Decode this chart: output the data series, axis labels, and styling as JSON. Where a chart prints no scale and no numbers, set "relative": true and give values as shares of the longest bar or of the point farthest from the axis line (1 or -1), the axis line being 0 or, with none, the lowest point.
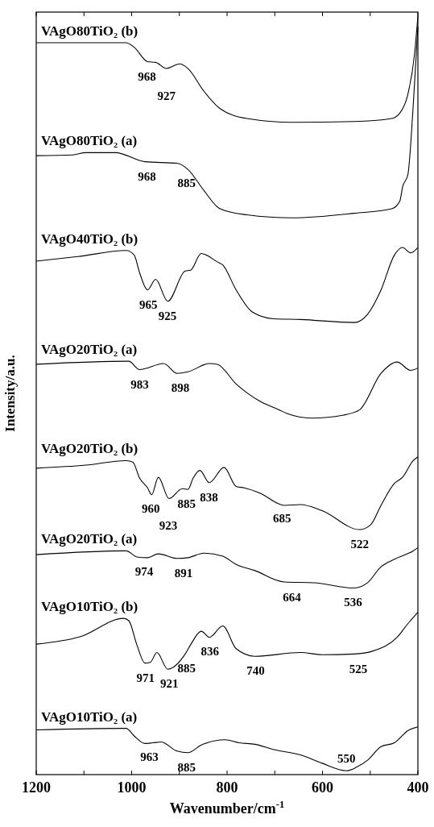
{
  "chart_data": {
    "type": "line",
    "relative": true,
    "xlabel": "Wavenumber/cm$^{-1}$",
    "ylabel": "Intensity/a.u.",
    "xlim": [
      1200,
      400
    ],
    "xticks": [
      1200,
      {
        "value": 1100,
        "label": null
      },
      1000,
      {
        "value": 900,
        "label": null
      },
      800,
      {
        "value": 700,
        "label": null
      },
      600,
      {
        "value": 500,
        "label": null
      },
      400
    ],
    "grid": false,
    "marker": "none",
    "line_style": "solid",
    "series": [
      {
        "name": "VAgO80TiO₂ (b)",
        "color": "#000000",
        "x": [
          1200,
          1011.6,
          994.7,
          966.6,
          949.7,
          927.2,
          899.1,
          882.2,
          848.5,
          814.7,
          758.5,
          662.9,
          533.5,
          454.8,
          437.9,
          421,
          407,
          400
        ],
        "values": [
          0.965,
          0.965,
          0.959,
          0.94,
          0.939,
          0.931,
          0.937,
          0.931,
          0.901,
          0.878,
          0.865,
          0.86,
          0.861,
          0.865,
          0.872,
          0.897,
          0.95,
          1.0
        ]
      },
      {
        "name": "VAgO80TiO₂ (a)",
        "color": "#000000",
        "x": [
          1200,
          1124,
          1096,
          1034,
          972,
          904.7,
          882.2,
          848.5,
          814.7,
          758.5,
          663,
          533.5,
          454.8,
          437.9,
          432,
          421,
          410,
          400
        ],
        "values": [
          0.816,
          0.817,
          0.82,
          0.82,
          0.808,
          0.806,
          0.798,
          0.77,
          0.746,
          0.738,
          0.734,
          0.74,
          0.746,
          0.756,
          0.775,
          0.791,
          0.88,
          0.986
        ]
      },
      {
        "name": "VAgO40TiO₂ (b)",
        "color": "#000000",
        "x": [
          1200,
          1112.8,
          1011.6,
          994.7,
          983.5,
          966.6,
          949.7,
          924.4,
          887.8,
          876.6,
          854.1,
          820.4,
          809.1,
          781,
          747.2,
          702.2,
          646,
          533.5,
          505.4,
          477.3,
          449.2,
          432.3,
          415.4,
          400
        ],
        "values": [
          0.677,
          0.683,
          0.691,
          0.685,
          0.662,
          0.639,
          0.653,
          0.624,
          0.664,
          0.665,
          0.687,
          0.676,
          0.672,
          0.639,
          0.61,
          0.601,
          0.6,
          0.596,
          0.607,
          0.639,
          0.685,
          0.695,
          0.688,
          0.695
        ]
      },
      {
        "name": "VAgO20TiO₂ (a)",
        "color": "#000000",
        "x": [
          1200,
          1006,
          983.5,
          932.9,
          904.7,
          882,
          837,
          820.4,
          781,
          730.4,
          691,
          674,
          623.5,
          556,
          522,
          477.3,
          443.6,
          415.4,
          400
        ],
        "values": [
          0.541,
          0.545,
          0.534,
          0.542,
          0.529,
          0.531,
          0.542,
          0.541,
          0.515,
          0.492,
          0.481,
          0.476,
          0.47,
          0.474,
          0.481,
          0.529,
          0.544,
          0.533,
          0.536
        ]
      },
      {
        "name": "VAgO20TiO₂ (b)",
        "color": "#000000",
        "x": [
          1200,
          1096,
          1011.6,
          997.5,
          983.5,
          966.6,
          958,
          944,
          921.6,
          893.5,
          882,
          871,
          857,
          837.2,
          806.3,
          781,
          764,
          730.4,
          679.8,
          646,
          601,
          522,
          499.5,
          477.3,
          449.2,
          432.3,
          409.8,
          400
        ],
        "values": [
          0.404,
          0.408,
          0.414,
          0.412,
          0.391,
          0.378,
          0.369,
          0.392,
          0.364,
          0.377,
          0.376,
          0.391,
          0.401,
          0.385,
          0.405,
          0.38,
          0.378,
          0.371,
          0.355,
          0.356,
          0.348,
          0.323,
          0.329,
          0.355,
          0.384,
          0.392,
          0.414,
          0.419
        ]
      },
      {
        "name": "VAgO20TiO₂ (a)",
        "color": "#000000",
        "x": [
          1200,
          1011.6,
          989,
          966.6,
          944,
          904.7,
          882,
          848.5,
          809,
          781,
          741.6,
          680,
          618,
          533.5,
          505.4,
          477.3,
          449.2,
          409.8,
          400
        ],
        "values": [
          0.29,
          0.295,
          0.287,
          0.286,
          0.291,
          0.285,
          0.286,
          0.292,
          0.288,
          0.277,
          0.269,
          0.254,
          0.253,
          0.246,
          0.253,
          0.274,
          0.284,
          0.295,
          0.299
        ]
      },
      {
        "name": "VAgO10TiO₂ (b)",
        "color": "#000000",
        "x": [
          1200,
          1107,
          1017,
          1006,
          989,
          972,
          961,
          947,
          924.4,
          887.8,
          876.6,
          854,
          837,
          809,
          781,
          741.6,
          646,
          601,
          533.5,
          494,
          443.6,
          421,
          400
        ],
        "values": [
          0.172,
          0.182,
          0.206,
          0.203,
          0.171,
          0.147,
          0.148,
          0.161,
          0.139,
          0.159,
          0.171,
          0.189,
          0.181,
          0.196,
          0.166,
          0.156,
          0.161,
          0.158,
          0.159,
          0.163,
          0.181,
          0.199,
          0.214
        ]
      },
      {
        "name": "VAgO10TiO₂ (a)",
        "color": "#000000",
        "x": [
          1200,
          1011.6,
          994.7,
          972,
          955,
          938.5,
          904.7,
          882,
          854,
          803.5,
          775,
          741.6,
          702,
          646,
          601,
          550,
          527.9,
          505.4,
          477.3,
          449.2,
          421,
          400
        ],
        "values": [
          0.059,
          0.061,
          0.051,
          0.041,
          0.042,
          0.043,
          0.031,
          0.029,
          0.039,
          0.046,
          0.042,
          0.04,
          0.033,
          0.026,
          0.015,
          0.005,
          0.01,
          0.019,
          0.037,
          0.042,
          0.058,
          0.063
        ]
      }
    ],
    "annotations": [
      {
        "text": "968",
        "x": 968,
        "y": 0.94
      },
      {
        "text": "927",
        "x": 927,
        "y": 0.931
      },
      {
        "text": "968",
        "x": 968,
        "y": 0.808
      },
      {
        "text": "885",
        "x": 885,
        "y": 0.799
      },
      {
        "text": "965",
        "x": 965,
        "y": 0.639
      },
      {
        "text": "925",
        "x": 925,
        "y": 0.624
      },
      {
        "text": "983",
        "x": 983,
        "y": 0.534
      },
      {
        "text": "898",
        "x": 898,
        "y": 0.53
      },
      {
        "text": "960",
        "x": 960,
        "y": 0.37
      },
      {
        "text": "923",
        "x": 923,
        "y": 0.365
      },
      {
        "text": "885",
        "x": 885,
        "y": 0.376
      },
      {
        "text": "838",
        "x": 838,
        "y": 0.385
      },
      {
        "text": "685",
        "x": 685,
        "y": 0.357
      },
      {
        "text": "522",
        "x": 522,
        "y": 0.323
      },
      {
        "text": "974",
        "x": 974,
        "y": 0.287
      },
      {
        "text": "891",
        "x": 891,
        "y": 0.285
      },
      {
        "text": "664",
        "x": 664,
        "y": 0.253
      },
      {
        "text": "536",
        "x": 536,
        "y": 0.247
      },
      {
        "text": "971",
        "x": 971,
        "y": 0.147
      },
      {
        "text": "921",
        "x": 921,
        "y": 0.139
      },
      {
        "text": "885",
        "x": 885,
        "y": 0.16
      },
      {
        "text": "836",
        "x": 836,
        "y": 0.182
      },
      {
        "text": "740",
        "x": 740,
        "y": 0.156
      },
      {
        "text": "525",
        "x": 525,
        "y": 0.159
      },
      {
        "text": "963",
        "x": 963,
        "y": 0.043
      },
      {
        "text": "885",
        "x": 885,
        "y": 0.029
      },
      {
        "text": "550",
        "x": 550,
        "y": 0.005
      }
    ]
  }
}
